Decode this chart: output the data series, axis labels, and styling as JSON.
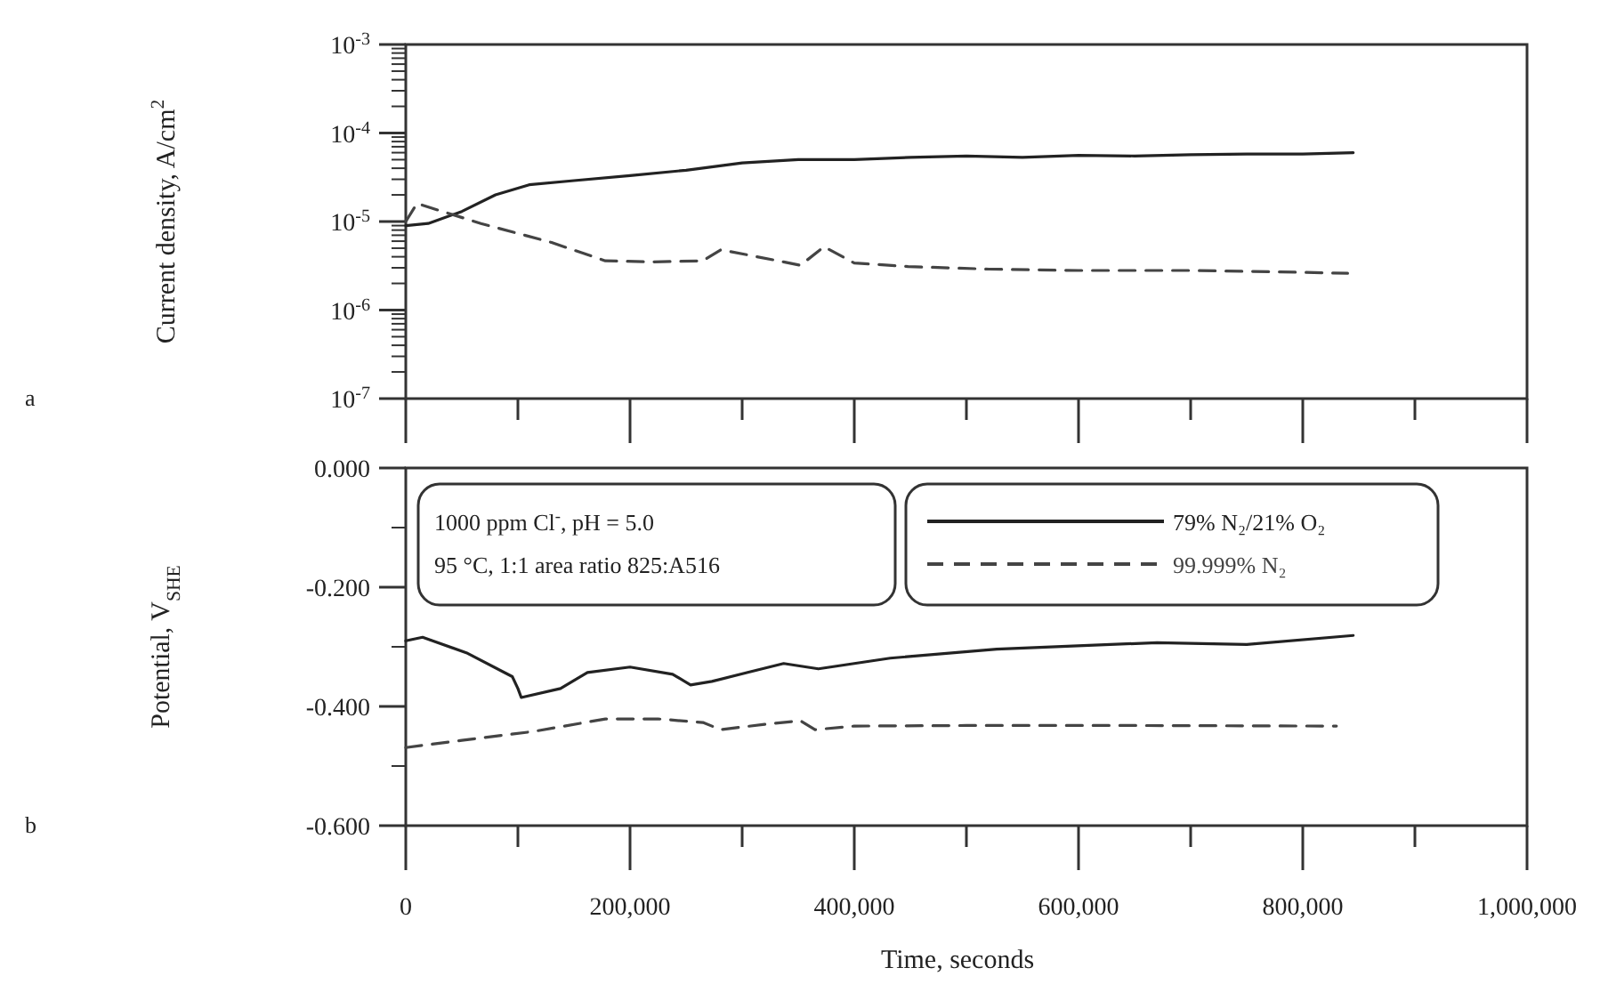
{
  "chart_data": [
    {
      "type": "line",
      "ylabel": "Current density, A/cm$^{2}$",
      "log": "y",
      "tick_labels": "y",
      "legend": false,
      "annotations": [
        "a"
      ],
      "xlim": [
        0,
        1000000
      ],
      "xticks": [
        {
          "value": 0,
          "label": null
        },
        {
          "value": 100000,
          "label": null
        },
        {
          "value": 200000,
          "label": null
        },
        {
          "value": 300000,
          "label": null
        },
        {
          "value": 400000,
          "label": null
        },
        {
          "value": 500000,
          "label": null
        },
        {
          "value": 600000,
          "label": null
        },
        {
          "value": 700000,
          "label": null
        },
        {
          "value": 800000,
          "label": null
        },
        {
          "value": 900000,
          "label": null
        },
        {
          "value": 1000000,
          "label": null
        }
      ],
      "ylim": [
        1e-07,
        0.001
      ],
      "yticks": [
        {
          "value": 1e-07,
          "label": "10$^{-7}$"
        },
        {
          "value": 2e-07,
          "label": null
        },
        {
          "value": 3e-07,
          "label": null
        },
        {
          "value": 4e-07,
          "label": null
        },
        {
          "value": 5e-07,
          "label": null
        },
        {
          "value": 6e-07,
          "label": null
        },
        {
          "value": 7e-07,
          "label": null
        },
        {
          "value": 8e-07,
          "label": null
        },
        {
          "value": 9e-07,
          "label": null
        },
        {
          "value": 1e-06,
          "label": "10$^{-6}$"
        },
        {
          "value": 2e-06,
          "label": null
        },
        {
          "value": 3e-06,
          "label": null
        },
        {
          "value": 4e-06,
          "label": null
        },
        {
          "value": 5e-06,
          "label": null
        },
        {
          "value": 6e-06,
          "label": null
        },
        {
          "value": 7e-06,
          "label": null
        },
        {
          "value": 8e-06,
          "label": null
        },
        {
          "value": 9e-06,
          "label": null
        },
        {
          "value": 1e-05,
          "label": "10$^{-5}$"
        },
        {
          "value": 2e-05,
          "label": null
        },
        {
          "value": 3e-05,
          "label": null
        },
        {
          "value": 4e-05,
          "label": null
        },
        {
          "value": 5e-05,
          "label": null
        },
        {
          "value": 6e-05,
          "label": null
        },
        {
          "value": 7e-05,
          "label": null
        },
        {
          "value": 8e-05,
          "label": null
        },
        {
          "value": 9e-05,
          "label": null
        },
        {
          "value": 0.0001,
          "label": "10$^{-4}$"
        },
        {
          "value": 0.0002,
          "label": null
        },
        {
          "value": 0.0003,
          "label": null
        },
        {
          "value": 0.0004,
          "label": null
        },
        {
          "value": 0.0005,
          "label": null
        },
        {
          "value": 0.0006,
          "label": null
        },
        {
          "value": 0.0007,
          "label": null
        },
        {
          "value": 0.0008,
          "label": null
        },
        {
          "value": 0.0009,
          "label": null
        },
        {
          "value": 0.001,
          "label": "10$^{-3}$"
        }
      ],
      "series": [
        {
          "color": "#222222",
          "line_style": "solid",
          "x": [
            0,
            20000,
            50000,
            80000,
            110000,
            150000,
            200000,
            250000,
            300000,
            350000,
            400000,
            450000,
            500000,
            550000,
            600000,
            650000,
            700000,
            750000,
            800000,
            845000
          ],
          "values": [
            9e-06,
            9.5e-06,
            1.3e-05,
            2e-05,
            2.6e-05,
            2.9e-05,
            3.3e-05,
            3.8e-05,
            4.6e-05,
            5e-05,
            5e-05,
            5.3e-05,
            5.5e-05,
            5.3e-05,
            5.6e-05,
            5.5e-05,
            5.7e-05,
            5.8e-05,
            5.8e-05,
            6e-05
          ]
        },
        {
          "color": "#444444",
          "line_style": "dashed",
          "x": [
            0,
            10000,
            67000,
            130000,
            178000,
            220000,
            265000,
            281000,
            337000,
            352000,
            373000,
            400000,
            448000,
            520000,
            600000,
            700000,
            780000,
            840000
          ],
          "values": [
            1e-05,
            1.6e-05,
            9.5e-06,
            5.8e-06,
            3.6e-06,
            3.5e-06,
            3.6e-06,
            4.8e-06,
            3.5e-06,
            3.2e-06,
            5.2e-06,
            3.4e-06,
            3.1e-06,
            2.9e-06,
            2.8e-06,
            2.8e-06,
            2.7e-06,
            2.6e-06
          ]
        }
      ]
    },
    {
      "type": "line",
      "xlabel": "Time, seconds",
      "ylabel": "Potential, V$_{SHE}$",
      "legend": "top",
      "annotations": [
        "b",
        "1000 ppm Cl$^{-}$, pH = 5.0",
        "95 °C, 1:1 area ratio 825:A516"
      ],
      "xlim": [
        0,
        1000000
      ],
      "xticks": [
        {
          "value": 0,
          "label": "0"
        },
        {
          "value": 100000,
          "label": null
        },
        {
          "value": 200000,
          "label": "200,000"
        },
        {
          "value": 300000,
          "label": null
        },
        {
          "value": 400000,
          "label": "400,000"
        },
        {
          "value": 500000,
          "label": null
        },
        {
          "value": 600000,
          "label": "600,000"
        },
        {
          "value": 700000,
          "label": null
        },
        {
          "value": 800000,
          "label": "800,000"
        },
        {
          "value": 900000,
          "label": null
        },
        {
          "value": 1000000,
          "label": "1,000,000"
        }
      ],
      "ylim": [
        -0.6,
        0
      ],
      "yticks": [
        {
          "value": 0,
          "label": "0.000"
        },
        {
          "value": -0.1,
          "label": null
        },
        {
          "value": -0.2,
          "label": "-0.200"
        },
        {
          "value": -0.3,
          "label": null
        },
        {
          "value": -0.4,
          "label": "-0.400"
        },
        {
          "value": -0.5,
          "label": null
        },
        {
          "value": -0.6,
          "label": "-0.600"
        }
      ],
      "series": [
        {
          "name": "79% N₂/21% O₂",
          "color": "#222222",
          "line_style": "solid",
          "x": [
            0,
            15000,
            54000,
            95000,
            100000,
            103000,
            138000,
            162000,
            200000,
            238000,
            254000,
            273000,
            305000,
            337000,
            368000,
            432000,
            527000,
            670000,
            750000,
            845000
          ],
          "values": [
            -0.29,
            -0.284,
            -0.31,
            -0.35,
            -0.37,
            -0.385,
            -0.37,
            -0.343,
            -0.334,
            -0.346,
            -0.364,
            -0.358,
            -0.343,
            -0.328,
            -0.337,
            -0.319,
            -0.304,
            -0.293,
            -0.296,
            -0.281
          ]
        },
        {
          "name": "99.999% N₂",
          "color": "#444444",
          "line_style": "dashed",
          "x": [
            0,
            50000,
            114000,
            178000,
            225000,
            265000,
            281000,
            320000,
            352000,
            365000,
            400000,
            500000,
            650000,
            830000
          ],
          "values": [
            -0.469,
            -0.457,
            -0.442,
            -0.421,
            -0.421,
            -0.427,
            -0.439,
            -0.43,
            -0.424,
            -0.439,
            -0.433,
            -0.432,
            -0.432,
            -0.433
          ]
        }
      ]
    }
  ]
}
